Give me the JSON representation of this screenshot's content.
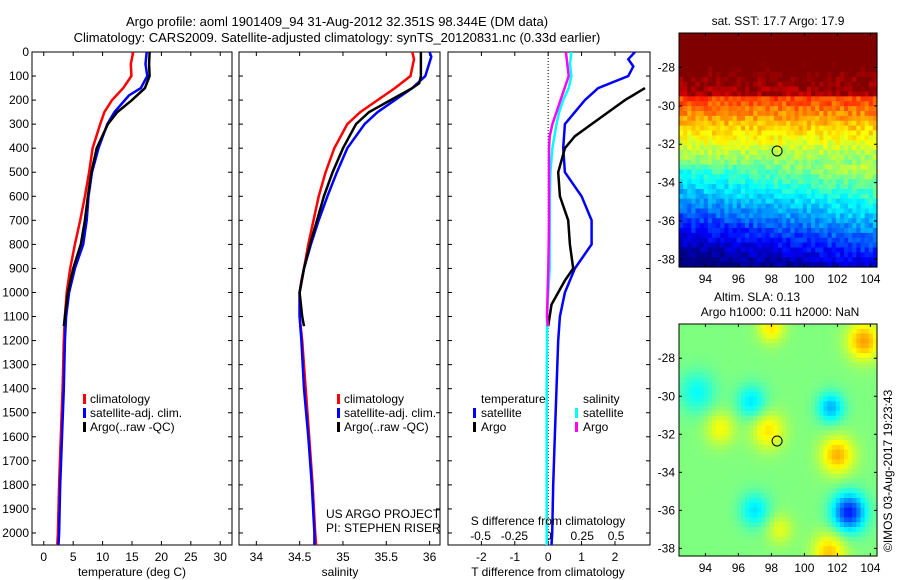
{
  "title": {
    "line1": "Argo profile: aoml 1901409_94 31-Aug-2012 32.351S 98.344E (DM data)",
    "line2": "Climatology: CARS2009. Satellite-adjusted climatology: synTS_20120831.nc (0.33d earlier)"
  },
  "colors": {
    "climatology": "#ff0000",
    "satellite": "#0000ff",
    "argo": "#000000",
    "s_satellite": "#00ffff",
    "s_argo": "#ff00ff"
  },
  "chart_data": [
    {
      "type": "line",
      "name": "temperature-profile",
      "xlabel": "temperature (deg C)",
      "ylabel": "",
      "xlim": [
        -2,
        32
      ],
      "ylim": [
        2050,
        0
      ],
      "xticks": [
        0,
        5,
        10,
        15,
        20,
        25,
        30
      ],
      "yticks": [
        0,
        100,
        200,
        300,
        400,
        500,
        600,
        700,
        800,
        900,
        1000,
        1100,
        1200,
        1300,
        1400,
        1500,
        1600,
        1700,
        1800,
        1900,
        2000
      ],
      "legend": {
        "position": "lower-center",
        "entries": [
          "climatology",
          "satellite-adj. clim.",
          "Argo(..raw -QC)"
        ]
      },
      "series": [
        {
          "name": "climatology",
          "color_key": "climatology",
          "depth": [
            0,
            50,
            100,
            150,
            200,
            250,
            300,
            400,
            500,
            600,
            700,
            800,
            900,
            1000,
            1100,
            1200,
            1400,
            1600,
            1800,
            2000,
            2050
          ],
          "values": [
            15.2,
            14.8,
            14.9,
            13.5,
            11.6,
            10.3,
            9.6,
            8.3,
            7.7,
            7.0,
            6.2,
            5.3,
            4.5,
            3.9,
            3.6,
            3.4,
            3.2,
            2.9,
            2.6,
            2.4,
            2.3
          ]
        },
        {
          "name": "satellite-adj. clim.",
          "color_key": "satellite",
          "depth": [
            0,
            50,
            100,
            150,
            180,
            250,
            300,
            400,
            500,
            600,
            700,
            800,
            900,
            1000,
            1100,
            1200,
            1400,
            1600,
            1800,
            2000,
            2050
          ],
          "values": [
            17.5,
            17.3,
            17.6,
            16.5,
            14.5,
            12.0,
            10.8,
            9.3,
            8.2,
            7.6,
            7.3,
            6.7,
            5.3,
            4.3,
            3.8,
            3.6,
            3.4,
            3.1,
            2.8,
            2.6,
            2.5
          ]
        },
        {
          "name": "Argo(..raw -QC)",
          "color_key": "argo",
          "depth": [
            0,
            50,
            100,
            150,
            200,
            250,
            300,
            400,
            500,
            600,
            700,
            800,
            900,
            1000,
            1100,
            1140
          ],
          "values": [
            18.0,
            17.9,
            18.0,
            17.2,
            15.0,
            12.5,
            10.9,
            9.0,
            8.1,
            7.5,
            7.0,
            6.3,
            5.0,
            4.1,
            3.6,
            3.4
          ]
        }
      ]
    },
    {
      "type": "line",
      "name": "salinity-profile",
      "xlabel": "salinity",
      "xlim": [
        33.8,
        36.12
      ],
      "ylim": [
        2050,
        0
      ],
      "xticks": [
        34,
        34.5,
        35,
        35.5,
        36
      ],
      "xticklabels": [
        "34",
        "34.5",
        "35",
        "35.5",
        "36"
      ],
      "legend": {
        "position": "lower-center",
        "entries": [
          "climatology",
          "satellite-adj. clim.",
          "Argo(..raw -QC)"
        ]
      },
      "annotation": [
        "US ARGO PROJECT",
        "PI: STEPHEN RISER"
      ],
      "series": [
        {
          "name": "climatology",
          "color_key": "climatology",
          "depth": [
            0,
            30,
            100,
            150,
            200,
            250,
            300,
            400,
            500,
            600,
            700,
            800,
            900,
            950,
            1000,
            1100,
            1200,
            1400,
            1600,
            1800,
            2000,
            2050
          ],
          "values": [
            35.8,
            35.82,
            35.78,
            35.6,
            35.4,
            35.2,
            35.05,
            34.9,
            34.8,
            34.72,
            34.66,
            34.6,
            34.55,
            34.52,
            34.5,
            34.5,
            34.53,
            34.57,
            34.61,
            34.65,
            34.68,
            34.69
          ]
        },
        {
          "name": "satellite-adj. clim.",
          "color_key": "satellite",
          "depth": [
            0,
            20,
            100,
            150,
            200,
            250,
            300,
            400,
            500,
            600,
            700,
            800,
            900,
            1000,
            1100,
            1200,
            1400,
            1600,
            1800,
            2000,
            2050
          ],
          "values": [
            36.0,
            36.02,
            35.95,
            35.8,
            35.6,
            35.4,
            35.25,
            35.05,
            34.93,
            34.82,
            34.72,
            34.63,
            34.55,
            34.5,
            34.5,
            34.52,
            34.55,
            34.6,
            34.64,
            34.67,
            34.67
          ]
        },
        {
          "name": "Argo(..raw -QC)",
          "color_key": "argo",
          "depth": [
            0,
            10,
            100,
            130,
            150,
            200,
            250,
            300,
            400,
            500,
            600,
            700,
            800,
            900,
            1000,
            1100,
            1140
          ],
          "values": [
            35.9,
            35.9,
            35.9,
            35.88,
            35.8,
            35.55,
            35.3,
            35.15,
            35.0,
            34.88,
            34.78,
            34.7,
            34.62,
            34.55,
            34.5,
            34.53,
            34.55
          ]
        }
      ]
    },
    {
      "type": "line",
      "name": "difference-profile",
      "xlabel": "T difference from climatology",
      "x2label": "S difference from climatology",
      "xlim": [
        -3,
        3.05
      ],
      "x2lim": [
        -0.74,
        0.75
      ],
      "ylim": [
        2050,
        0
      ],
      "xticks": [
        -2,
        -1,
        0,
        1,
        2
      ],
      "x2ticks": [
        -0.5,
        -0.25,
        0,
        0.25,
        0.5
      ],
      "x2ticklabels": [
        "-0.5",
        "-0.25",
        "0",
        "0.25",
        "0.5"
      ],
      "legend": {
        "position": "lower-center",
        "temperature_label": "temperature",
        "salinity_label": "salinity",
        "entries": [
          "satellite",
          "Argo",
          "satellite",
          "Argo"
        ]
      },
      "series": [
        {
          "name": "T satellite",
          "axis": "T",
          "color_key": "satellite",
          "depth": [
            0,
            30,
            60,
            100,
            150,
            200,
            250,
            300,
            400,
            500,
            600,
            700,
            800,
            900,
            1000,
            1100,
            1200,
            1400,
            1600,
            1800,
            2000,
            2050
          ],
          "values": [
            2.6,
            2.4,
            2.55,
            2.4,
            1.5,
            1.1,
            0.8,
            0.5,
            0.45,
            0.5,
            1.0,
            1.3,
            1.3,
            0.8,
            0.5,
            0.35,
            0.3,
            0.25,
            0.2,
            0.15,
            0.12,
            0.1
          ]
        },
        {
          "name": "T Argo",
          "axis": "T",
          "color_key": "argo",
          "depth": [
            150,
            200,
            250,
            300,
            350,
            400,
            500,
            600,
            700,
            800,
            900,
            950,
            1000,
            1050,
            1140
          ],
          "values": [
            2.9,
            2.3,
            1.8,
            1.3,
            0.8,
            0.5,
            0.3,
            0.35,
            0.6,
            0.65,
            0.75,
            0.5,
            0.3,
            0.1,
            0.0
          ]
        },
        {
          "name": "S satellite",
          "axis": "S",
          "color_key": "s_satellite",
          "depth": [
            0,
            50,
            100,
            150,
            200,
            250,
            300,
            400,
            500,
            600,
            700,
            800,
            900,
            1000,
            1100,
            1200,
            1400,
            1600,
            1800,
            2000,
            2050
          ],
          "values": [
            0.17,
            0.16,
            0.17,
            0.15,
            0.11,
            0.08,
            0.06,
            0.03,
            0.015,
            0.012,
            0.012,
            0.01,
            0.01,
            0.0,
            -0.01,
            -0.01,
            -0.012,
            -0.012,
            -0.012,
            -0.012,
            -0.012
          ]
        },
        {
          "name": "S Argo",
          "axis": "S",
          "color_key": "s_argo",
          "depth": [
            0,
            50,
            100,
            150,
            200,
            250,
            300,
            350,
            400,
            500,
            600,
            700,
            800,
            900,
            1000,
            1100,
            1140
          ],
          "values": [
            0.13,
            0.14,
            0.15,
            0.12,
            0.09,
            0.06,
            0.03,
            0.01,
            0.005,
            0.005,
            0.005,
            0.005,
            0.003,
            0.0,
            -0.005,
            -0.01,
            -0.003
          ]
        }
      ]
    },
    {
      "type": "heatmap",
      "name": "sst-map",
      "title": "sat. SST: 17.7 Argo: 17.9",
      "xlim": [
        92.4,
        104.4
      ],
      "ylim": [
        -38.4,
        -26.2
      ],
      "xticks": [
        94,
        96,
        98,
        100,
        102,
        104
      ],
      "yticks": [
        -28,
        -30,
        -32,
        -34,
        -36,
        -38
      ],
      "marker": {
        "lon": 98.344,
        "lat": -32.351
      },
      "description": "SST field: warm (dark red) north of -29, orange/yellow band to -32.5, green/cyan/blue to the south"
    },
    {
      "type": "heatmap",
      "name": "sla-map",
      "title": "Altim. SLA: 0.13",
      "subtitle": "Argo h1000: 0.11 h2000: NaN",
      "xlim": [
        92.4,
        104.4
      ],
      "ylim": [
        -38.4,
        -26.2
      ],
      "xticks": [
        94,
        96,
        98,
        100,
        102,
        104
      ],
      "yticks": [
        -28,
        -30,
        -32,
        -34,
        -36,
        -38
      ],
      "marker": {
        "lon": 98.344,
        "lat": -32.351
      },
      "annotation": "©IMOS 03-Aug-2017 19:23:43",
      "description": "SLA field mostly green with yellow/orange highs and cyan/blue lows (strong low near 102.7E, -36S)"
    }
  ]
}
